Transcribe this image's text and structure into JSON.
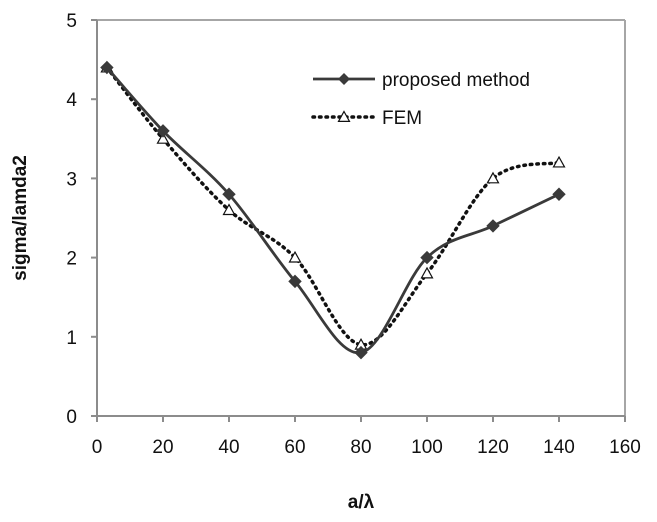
{
  "chart_data": {
    "type": "line",
    "title": "",
    "xlabel": "a/λ",
    "ylabel": "sigma/lamda2",
    "xlim": [
      0,
      160
    ],
    "ylim": [
      0,
      5
    ],
    "xticks": [
      0,
      20,
      40,
      60,
      80,
      100,
      120,
      140,
      160
    ],
    "yticks": [
      0,
      1,
      2,
      3,
      4,
      5
    ],
    "grid": false,
    "legend_position": "top-right",
    "series": [
      {
        "name": "proposed method",
        "style": "solid-smooth",
        "marker": "diamond",
        "color": "#3a3a3a",
        "x": [
          3,
          20,
          40,
          60,
          80,
          100,
          120,
          140
        ],
        "y": [
          4.4,
          3.6,
          2.8,
          1.7,
          0.8,
          2.0,
          2.4,
          2.8
        ]
      },
      {
        "name": "FEM",
        "style": "dotted-smooth",
        "marker": "triangle-open",
        "color": "#111111",
        "x": [
          3,
          20,
          40,
          60,
          80,
          100,
          120,
          140
        ],
        "y": [
          4.4,
          3.5,
          2.6,
          2.0,
          0.9,
          1.8,
          3.0,
          3.2
        ]
      }
    ]
  }
}
